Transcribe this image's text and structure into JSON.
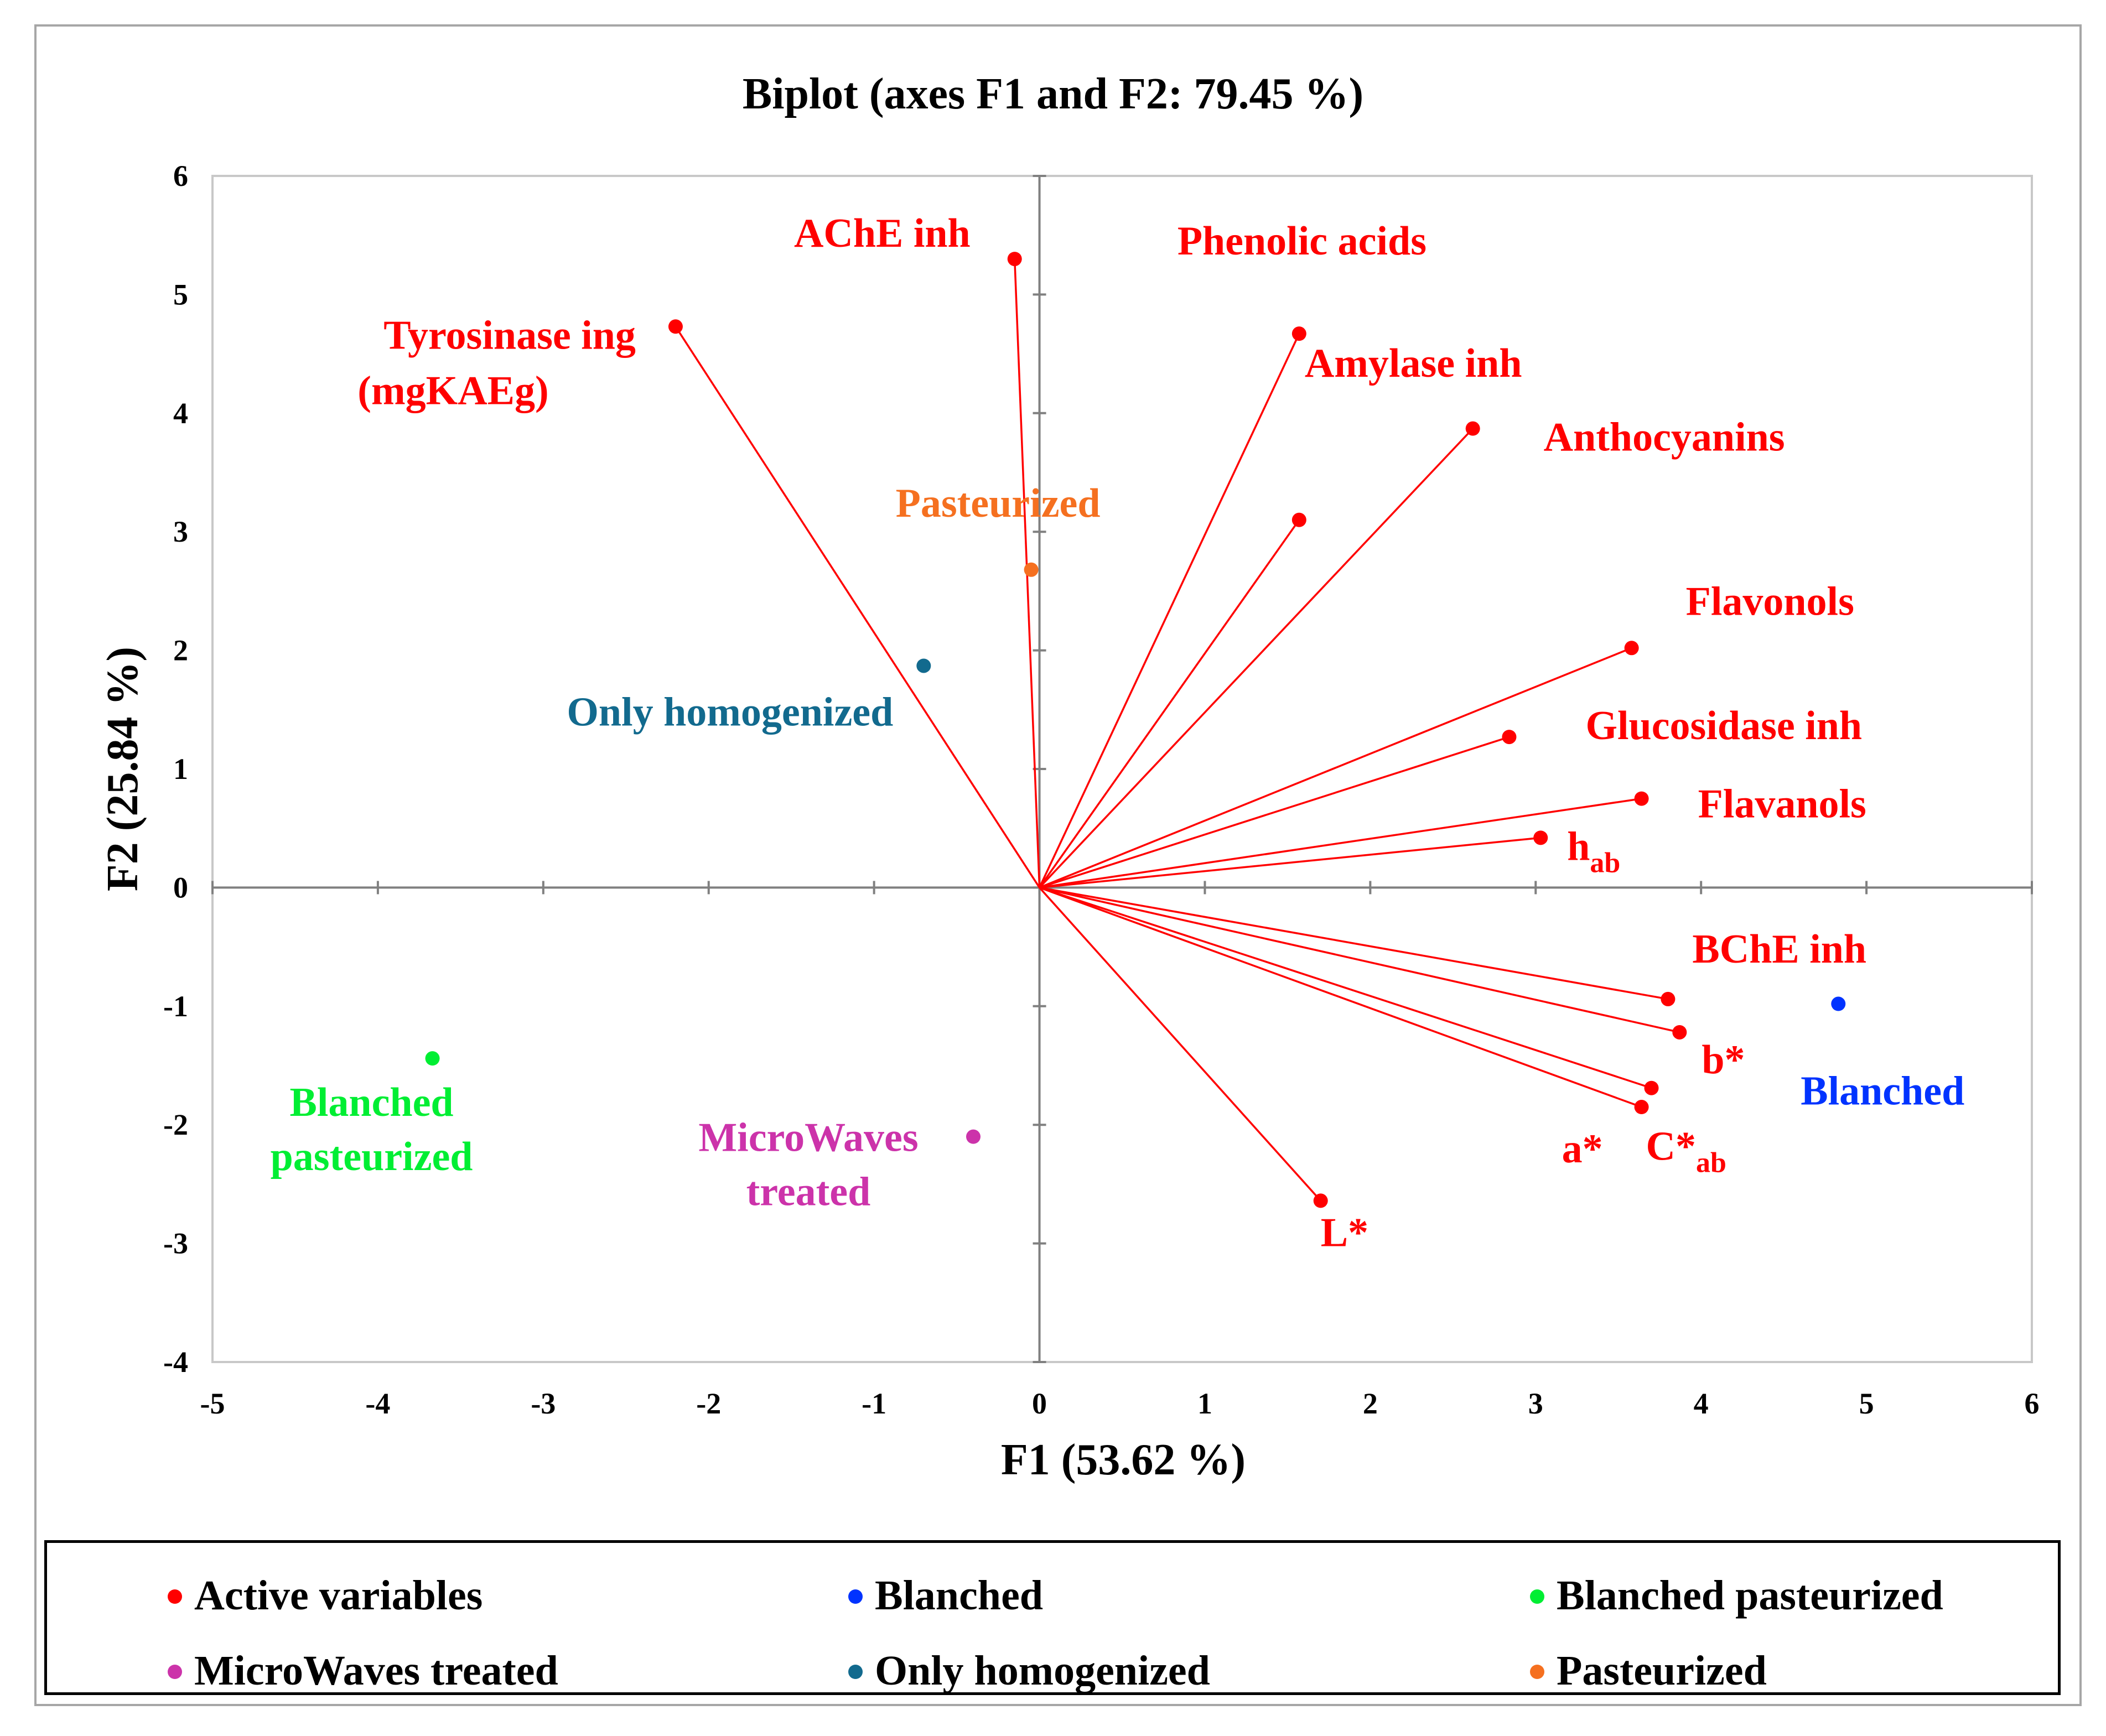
{
  "chart_data": {
    "type": "scatter",
    "title": "Biplot (axes F1 and F2: 79.45 %)",
    "xlabel": "F1 (53.62 %)",
    "ylabel": "F2 (25.84 %)",
    "xlim": [
      -5,
      6
    ],
    "ylim": [
      -4,
      6
    ],
    "xticks": [
      "-5",
      "-4",
      "-3",
      "-2",
      "-1",
      "0",
      "1",
      "2",
      "3",
      "4",
      "5",
      "6"
    ],
    "yticks": [
      "-4",
      "-3",
      "-2",
      "-1",
      "0",
      "1",
      "2",
      "3",
      "4",
      "5",
      "6"
    ],
    "colors": {
      "active": "#ff0000",
      "blanched": "#0033ff",
      "blanched_pasteurized": "#00ee33",
      "microwaves": "#cc33aa",
      "only_homogenized": "#126a8e",
      "pasteurized": "#f57020"
    },
    "variables": [
      {
        "name": "AChE inh",
        "x": -0.15,
        "y": 5.3
      },
      {
        "name": "Tyrosinase ing",
        "name2": "(mgKAEg)",
        "x": -2.2,
        "y": 4.73
      },
      {
        "name": "Phenolic acids",
        "x": 1.57,
        "y": 3.1
      },
      {
        "name": "Amylase inh",
        "x": 1.57,
        "y": 4.67
      },
      {
        "name": "Anthocyanins",
        "x": 2.62,
        "y": 3.87
      },
      {
        "name": "Flavonols",
        "x": 3.58,
        "y": 2.02
      },
      {
        "name": "Glucosidase inh",
        "x": 2.84,
        "y": 1.27
      },
      {
        "name": "Flavanols",
        "x": 3.64,
        "y": 0.75
      },
      {
        "name": "h",
        "sub": "ab",
        "x": 3.03,
        "y": 0.42
      },
      {
        "name": "BChE inh",
        "x": 3.8,
        "y": -0.94
      },
      {
        "name": "b*",
        "x": 3.87,
        "y": -1.22
      },
      {
        "name": "C*",
        "sub": "ab",
        "x": 3.7,
        "y": -1.69
      },
      {
        "name": "a*",
        "x": 3.64,
        "y": -1.85
      },
      {
        "name": "L*",
        "x": 1.7,
        "y": -2.64
      }
    ],
    "observations": [
      {
        "name": "Pasteurized",
        "x": -0.05,
        "y": 2.68,
        "color_key": "pasteurized"
      },
      {
        "name": "Only homogenized",
        "x": -0.7,
        "y": 1.87,
        "color_key": "only_homogenized"
      },
      {
        "name": "Blanched",
        "name2": "pasteurized",
        "x": -3.67,
        "y": -1.44,
        "color_key": "blanched_pasteurized"
      },
      {
        "name": "MicroWaves",
        "name2": "treated",
        "x": -0.4,
        "y": -2.1,
        "color_key": "microwaves"
      },
      {
        "name": "Blanched",
        "x": 4.83,
        "y": -0.98,
        "color_key": "blanched"
      }
    ],
    "legend": [
      {
        "label": "Active variables",
        "color_key": "active"
      },
      {
        "label": "Blanched",
        "color_key": "blanched"
      },
      {
        "label": "Blanched pasteurized",
        "color_key": "blanched_pasteurized"
      },
      {
        "label": "MicroWaves treated",
        "color_key": "microwaves"
      },
      {
        "label": "Only homogenized",
        "color_key": "only_homogenized"
      },
      {
        "label": "Pasteurized",
        "color_key": "pasteurized"
      }
    ],
    "legend_position": "bottom"
  }
}
